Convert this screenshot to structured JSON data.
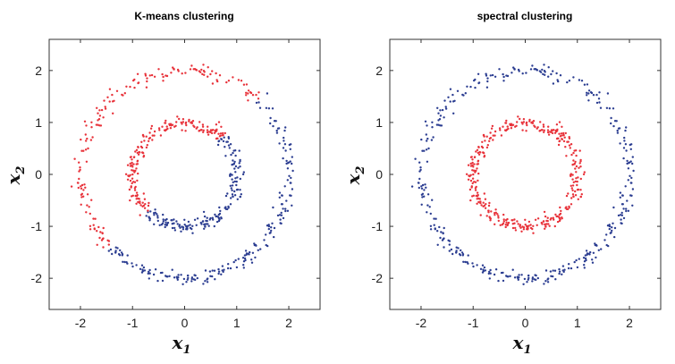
{
  "chart_data": [
    {
      "type": "scatter",
      "title": "K-means clustering",
      "xlabel": "x",
      "xlabel_sub": "1",
      "ylabel": "x",
      "ylabel_sub": "2",
      "xlim": [
        -2.6,
        2.6
      ],
      "ylim": [
        -2.6,
        2.6
      ],
      "xticks": [
        -2,
        -1,
        0,
        1,
        2
      ],
      "yticks": [
        -2,
        -1,
        0,
        1,
        2
      ],
      "xtick_labels": [
        "-2",
        "-1",
        "0",
        "1",
        "2"
      ],
      "ytick_labels": [
        "-2",
        "-1",
        "0",
        "1",
        "2"
      ],
      "grid": false,
      "legend": "none",
      "dataset": {
        "inner_radius": 1.0,
        "outer_radius": 2.0,
        "points_per_ring": 360,
        "noise_sd": 0.07
      },
      "assignment": "kmeans",
      "kmeans_split_angle_deg": -45,
      "colors": {
        "cluster_a": "#e8323a",
        "cluster_b": "#2b3d91"
      }
    },
    {
      "type": "scatter",
      "title": "spectral clustering",
      "xlabel": "x",
      "xlabel_sub": "1",
      "ylabel": "x",
      "ylabel_sub": "2",
      "xlim": [
        -2.6,
        2.6
      ],
      "ylim": [
        -2.6,
        2.6
      ],
      "xticks": [
        -2,
        -1,
        0,
        1,
        2
      ],
      "yticks": [
        -2,
        -1,
        0,
        1,
        2
      ],
      "xtick_labels": [
        "-2",
        "-1",
        "0",
        "1",
        "2"
      ],
      "ytick_labels": [
        "-2",
        "-1",
        "0",
        "1",
        "2"
      ],
      "grid": false,
      "legend": "none",
      "dataset": {
        "inner_radius": 1.0,
        "outer_radius": 2.0,
        "points_per_ring": 360,
        "noise_sd": 0.07
      },
      "assignment": "by-ring",
      "colors": {
        "inner_ring": "#e8323a",
        "outer_ring": "#2b3d91"
      }
    }
  ]
}
